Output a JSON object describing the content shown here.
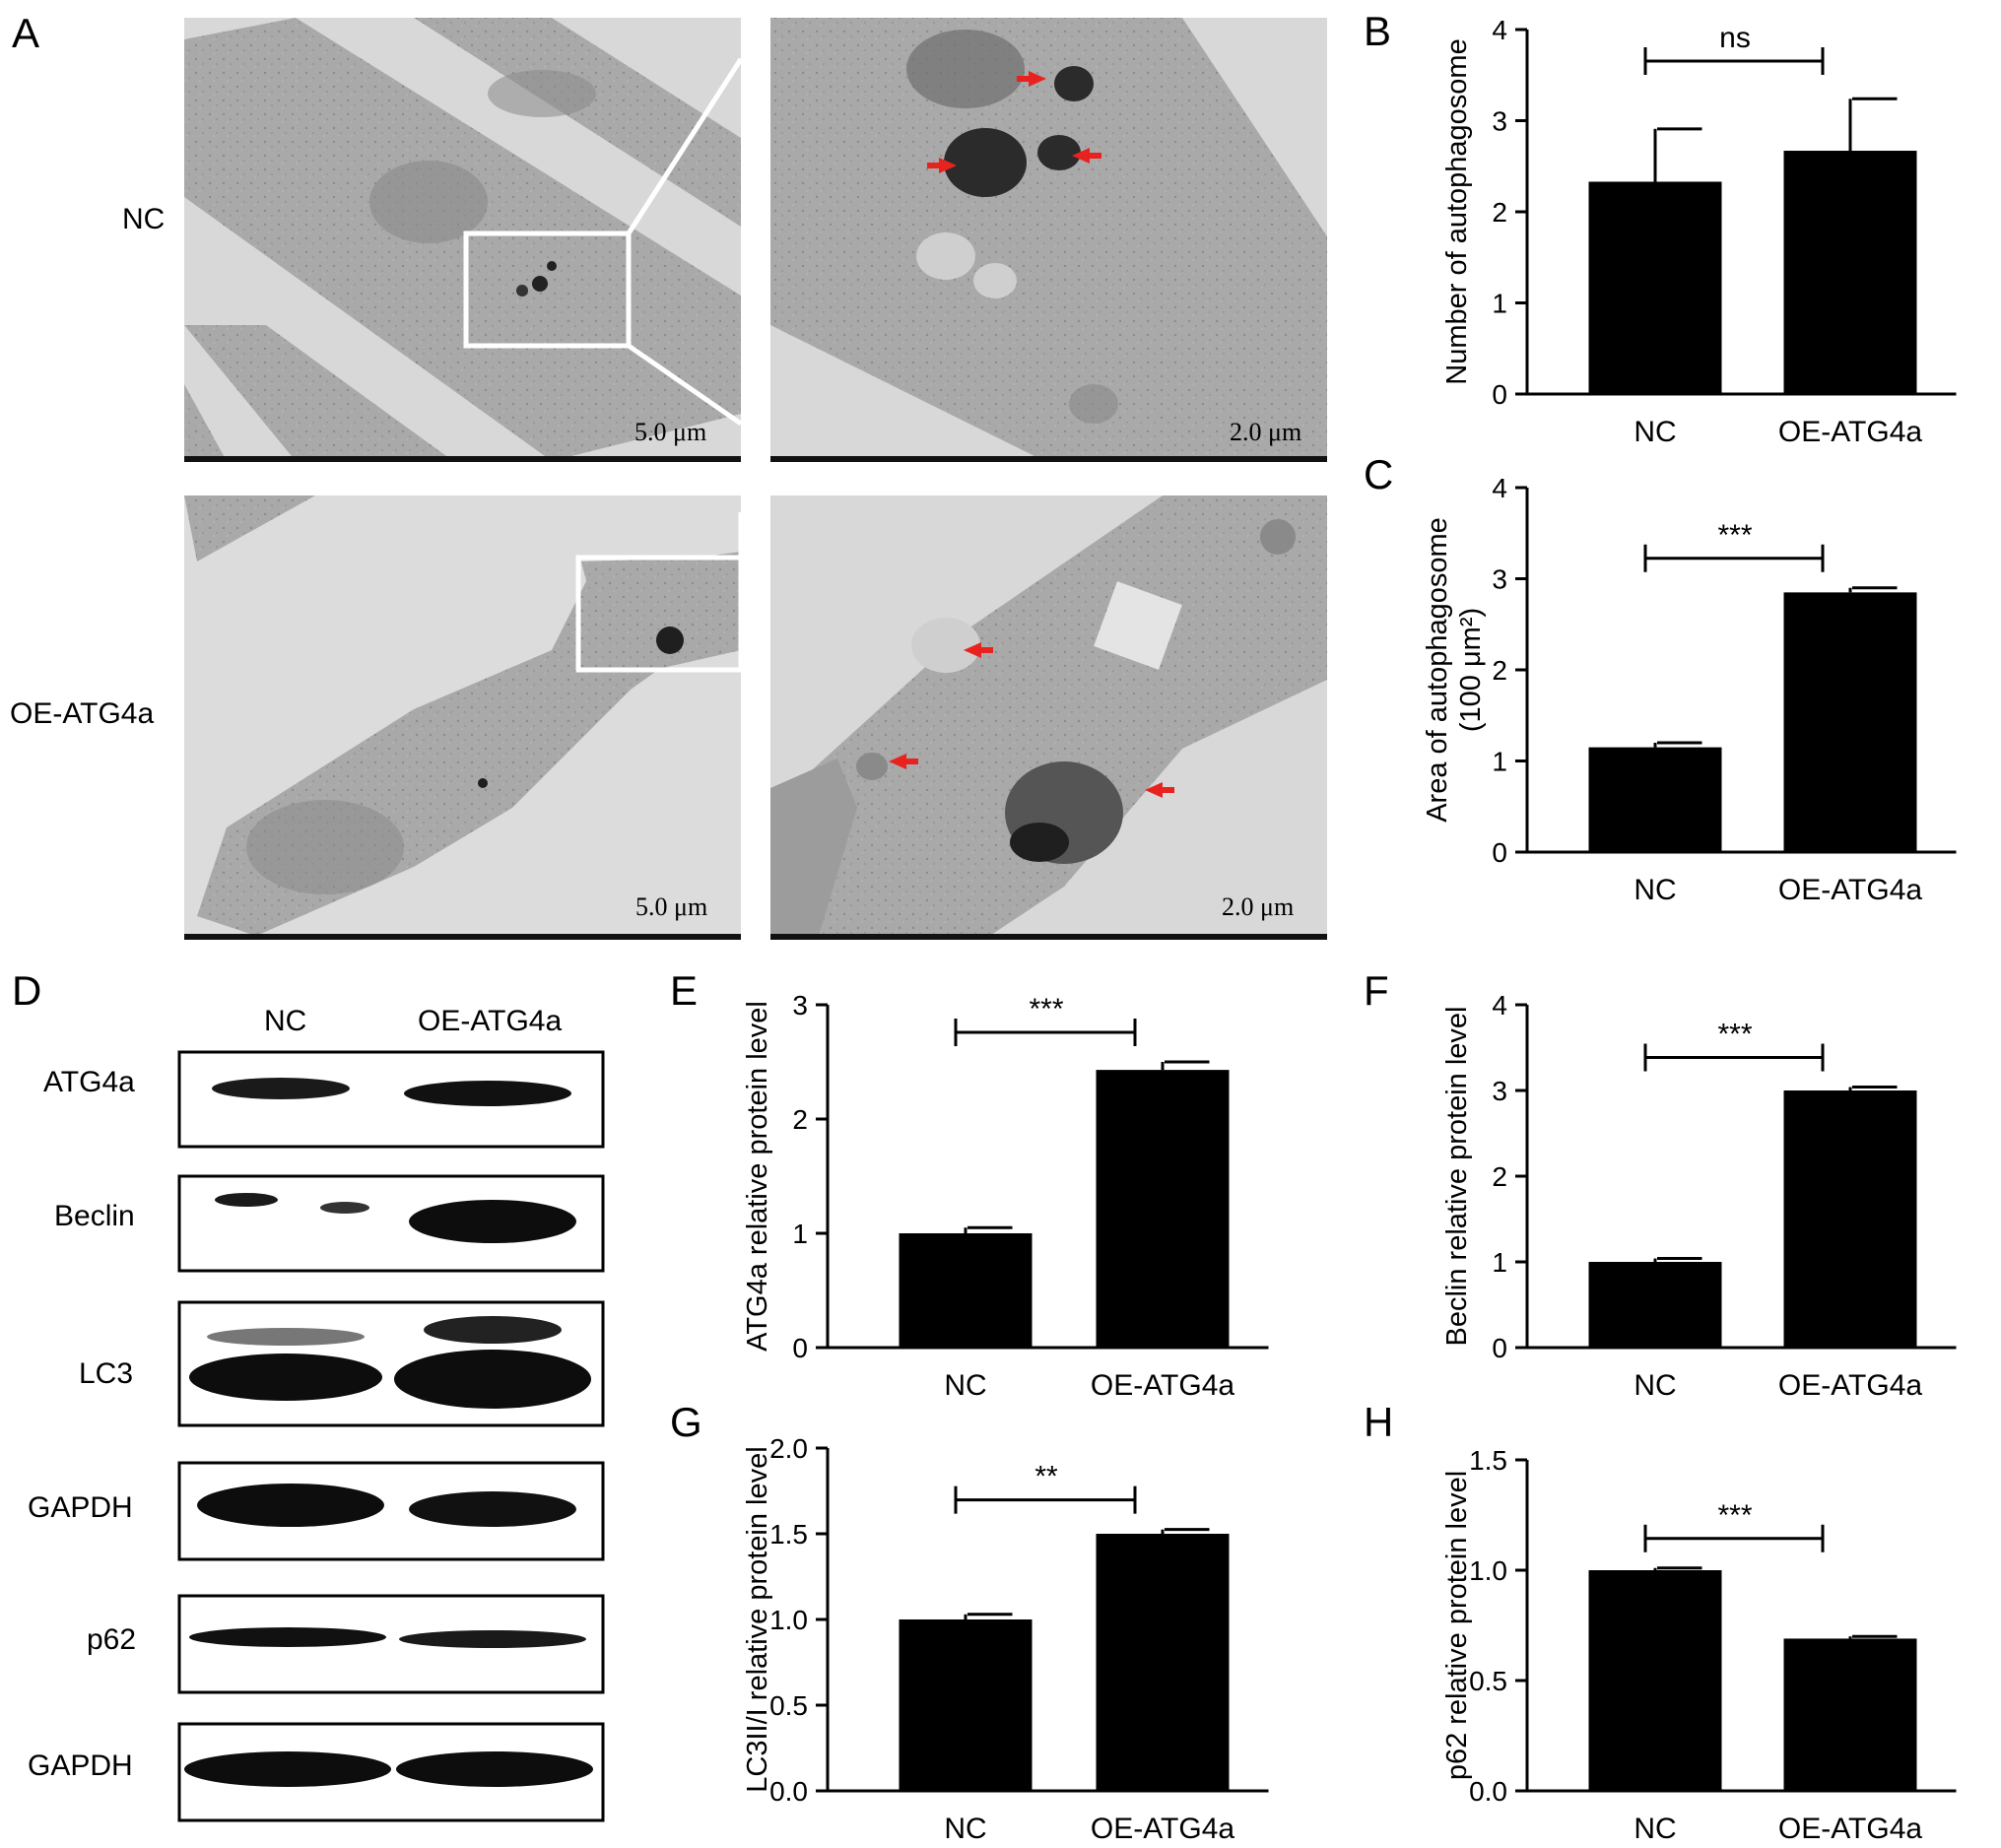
{
  "panels": {
    "A": "A",
    "B": "B",
    "C": "C",
    "D": "D",
    "E": "E",
    "F": "F",
    "G": "G",
    "H": "H"
  },
  "em": {
    "row_labels": [
      "NC",
      "OE-ATG4a"
    ],
    "scale_low": "5.0 μm",
    "scale_high": "2.0 μm"
  },
  "western": {
    "columns": [
      "NC",
      "OE-ATG4a"
    ],
    "rows": [
      "ATG4a",
      "Beclin",
      "LC3",
      "GAPDH",
      "p62",
      "GAPDH"
    ]
  },
  "colors": {
    "bar": "#000000",
    "arrow": "#e8231f",
    "background": "#ffffff"
  },
  "chart_data": [
    {
      "id": "B",
      "type": "bar",
      "categories": [
        "NC",
        "OE-ATG4a"
      ],
      "values": [
        2.33,
        2.67
      ],
      "errors": [
        0.58,
        0.57
      ],
      "ylabel": "Number of autophagosome",
      "ylabel2": "",
      "ylim": [
        0,
        4
      ],
      "yticks": [
        "0",
        "1",
        "2",
        "3",
        "4"
      ],
      "ytick_values": [
        0,
        1,
        2,
        3,
        4
      ],
      "significance": "ns"
    },
    {
      "id": "C",
      "type": "bar",
      "categories": [
        "NC",
        "OE-ATG4a"
      ],
      "values": [
        1.15,
        2.85
      ],
      "errors": [
        0.05,
        0.05
      ],
      "ylabel": "Area of autophagosome",
      "ylabel2": "(100 μm²)",
      "ylim": [
        0,
        4
      ],
      "yticks": [
        "0",
        "1",
        "2",
        "3",
        "4"
      ],
      "ytick_values": [
        0,
        1,
        2,
        3,
        4
      ],
      "significance": "***"
    },
    {
      "id": "E",
      "type": "bar",
      "categories": [
        "NC",
        "OE-ATG4a"
      ],
      "values": [
        1.0,
        2.43
      ],
      "errors": [
        0.05,
        0.07
      ],
      "ylabel": "ATG4a relative protein level",
      "ylabel2": "",
      "ylim": [
        0,
        3
      ],
      "yticks": [
        "0",
        "1",
        "2",
        "3"
      ],
      "ytick_values": [
        0,
        1,
        2,
        3
      ],
      "significance": "***"
    },
    {
      "id": "F",
      "type": "bar",
      "categories": [
        "NC",
        "OE-ATG4a"
      ],
      "values": [
        1.0,
        3.0
      ],
      "errors": [
        0.04,
        0.04
      ],
      "ylabel": "Beclin relative protein level",
      "ylabel2": "",
      "ylim": [
        0,
        4
      ],
      "yticks": [
        "0",
        "1",
        "2",
        "3",
        "4"
      ],
      "ytick_values": [
        0,
        1,
        2,
        3,
        4
      ],
      "significance": "***"
    },
    {
      "id": "G",
      "type": "bar",
      "categories": [
        "NC",
        "OE-ATG4a"
      ],
      "values": [
        1.0,
        1.5
      ],
      "errors": [
        0.03,
        0.025
      ],
      "ylabel": "LC3II/I relative protein level",
      "ylabel2": "",
      "ylim": [
        0,
        2
      ],
      "yticks": [
        "0.0",
        "0.5",
        "1.0",
        "1.5",
        "2.0"
      ],
      "ytick_values": [
        0,
        0.5,
        1,
        1.5,
        2
      ],
      "significance": "**"
    },
    {
      "id": "H",
      "type": "bar",
      "categories": [
        "NC",
        "OE-ATG4a"
      ],
      "values": [
        1.0,
        0.69
      ],
      "errors": [
        0.01,
        0.01
      ],
      "ylabel": "p62 relative protein level",
      "ylabel2": "",
      "ylim": [
        0,
        1.5
      ],
      "yticks": [
        "0.0",
        "0.5",
        "1.0",
        "1.5"
      ],
      "ytick_values": [
        0,
        0.5,
        1,
        1.5
      ],
      "significance": "***"
    }
  ]
}
